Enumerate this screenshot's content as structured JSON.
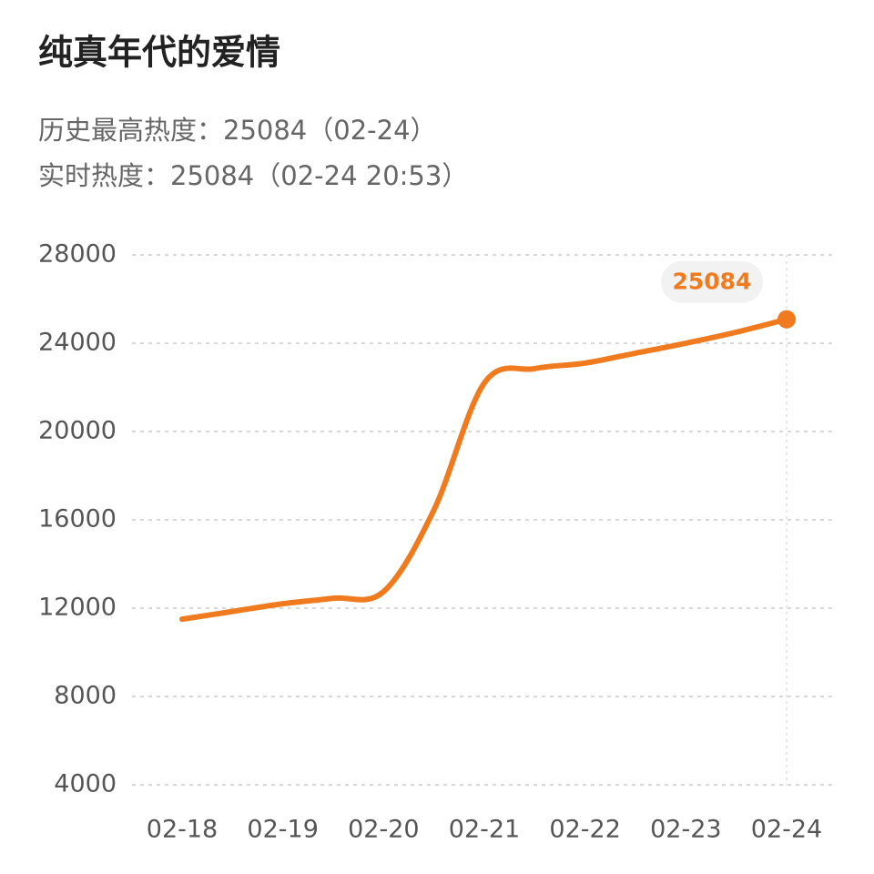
{
  "chart_data": {
    "type": "line",
    "title": "纯真年代的爱情",
    "subtitle": [
      "历史最高热度：25084（02-24）",
      "实时热度：25084（02-24 20:53）"
    ],
    "categories": [
      "02-18",
      null,
      "02-19",
      null,
      "02-20",
      null,
      "02-21",
      null,
      "02-22",
      null,
      "02-23",
      null,
      "02-24"
    ],
    "values": [
      11500,
      11850,
      12200,
      12450,
      12750,
      16450,
      22200,
      22850,
      23100,
      23550,
      24000,
      24500,
      25084
    ],
    "color": "#f07a1e",
    "ylim": [
      4000,
      28000
    ],
    "yticks": [
      4000,
      8000,
      12000,
      16000,
      20000,
      24000,
      28000
    ],
    "grid": true
  }
}
